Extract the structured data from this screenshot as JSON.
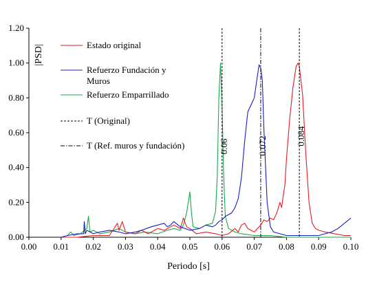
{
  "chart_data": {
    "type": "line",
    "xlabel": "Periodo  [s]",
    "ylabel": "|PSD|",
    "xlim": [
      0,
      0.1
    ],
    "ylim": [
      0,
      1.2
    ],
    "xticks": [
      "0.00",
      "0.01",
      "0.02",
      "0.03",
      "0.04",
      "0.05",
      "0.06",
      "0.07",
      "0.08",
      "0.09",
      "0.10"
    ],
    "yticks": [
      "0.00",
      "0.20",
      "0.40",
      "0.60",
      "0.80",
      "1.00",
      "1.20"
    ],
    "grid": false,
    "legend_position": "top-left-inside",
    "series": [
      {
        "name": "Estado original",
        "color": "#e8191f",
        "x": [
          0.01,
          0.015,
          0.02,
          0.025,
          0.0275,
          0.028,
          0.029,
          0.03,
          0.033,
          0.035,
          0.037,
          0.04,
          0.042,
          0.045,
          0.047,
          0.048,
          0.049,
          0.05,
          0.052,
          0.055,
          0.058,
          0.06,
          0.062,
          0.064,
          0.065,
          0.066,
          0.067,
          0.068,
          0.069,
          0.07,
          0.071,
          0.072,
          0.073,
          0.074,
          0.075,
          0.076,
          0.077,
          0.078,
          0.0785,
          0.079,
          0.0795,
          0.08,
          0.081,
          0.082,
          0.083,
          0.0836,
          0.084,
          0.085,
          0.086,
          0.087,
          0.088,
          0.089,
          0.09,
          0.092,
          0.095,
          0.098,
          0.1
        ],
        "values": [
          0.0,
          0.0,
          0.01,
          0.01,
          0.08,
          0.04,
          0.09,
          0.03,
          0.02,
          0.04,
          0.02,
          0.05,
          0.04,
          0.07,
          0.05,
          0.11,
          0.06,
          0.05,
          0.02,
          0.03,
          0.02,
          0.01,
          0.02,
          0.05,
          0.03,
          0.07,
          0.08,
          0.05,
          0.04,
          0.03,
          0.05,
          0.07,
          0.1,
          0.09,
          0.11,
          0.1,
          0.14,
          0.2,
          0.17,
          0.24,
          0.3,
          0.45,
          0.68,
          0.86,
          0.98,
          1.0,
          0.98,
          0.82,
          0.48,
          0.2,
          0.08,
          0.05,
          0.04,
          0.03,
          0.02,
          0.01,
          0.01
        ]
      },
      {
        "name": "Refuerzo Fundación y Muros",
        "color": "#1919c8",
        "x": [
          0.01,
          0.012,
          0.015,
          0.017,
          0.0172,
          0.0175,
          0.018,
          0.02,
          0.022,
          0.025,
          0.028,
          0.03,
          0.033,
          0.035,
          0.038,
          0.04,
          0.042,
          0.043,
          0.044,
          0.045,
          0.047,
          0.05,
          0.053,
          0.055,
          0.057,
          0.058,
          0.059,
          0.06,
          0.061,
          0.062,
          0.063,
          0.064,
          0.065,
          0.066,
          0.067,
          0.068,
          0.069,
          0.07,
          0.071,
          0.0715,
          0.072,
          0.0725,
          0.073,
          0.074,
          0.075,
          0.076,
          0.078,
          0.08,
          0.085,
          0.09,
          0.092,
          0.094,
          0.096,
          0.098,
          0.1
        ],
        "values": [
          0.0,
          0.01,
          0.02,
          0.02,
          0.09,
          0.02,
          0.04,
          0.02,
          0.03,
          0.04,
          0.03,
          0.02,
          0.03,
          0.04,
          0.06,
          0.07,
          0.08,
          0.06,
          0.07,
          0.09,
          0.06,
          0.04,
          0.05,
          0.07,
          0.06,
          0.07,
          0.09,
          0.1,
          0.12,
          0.13,
          0.14,
          0.17,
          0.22,
          0.34,
          0.55,
          0.72,
          0.76,
          0.8,
          0.93,
          0.99,
          0.97,
          0.9,
          0.62,
          0.2,
          0.06,
          0.03,
          0.02,
          0.01,
          0.01,
          0.01,
          0.02,
          0.03,
          0.05,
          0.08,
          0.11
        ]
      },
      {
        "name": "Refuerzo Emparrillado",
        "color": "#16a84a",
        "x": [
          0.01,
          0.012,
          0.013,
          0.014,
          0.016,
          0.018,
          0.0185,
          0.019,
          0.02,
          0.022,
          0.025,
          0.028,
          0.03,
          0.033,
          0.036,
          0.04,
          0.043,
          0.045,
          0.047,
          0.048,
          0.049,
          0.05,
          0.0505,
          0.051,
          0.053,
          0.055,
          0.057,
          0.058,
          0.0585,
          0.059,
          0.0595,
          0.06,
          0.0605,
          0.061,
          0.062,
          0.064,
          0.066,
          0.07,
          0.075,
          0.08,
          0.09,
          0.1
        ],
        "values": [
          0.0,
          0.01,
          0.03,
          0.01,
          0.02,
          0.05,
          0.12,
          0.03,
          0.04,
          0.02,
          0.03,
          0.05,
          0.03,
          0.02,
          0.03,
          0.02,
          0.04,
          0.05,
          0.04,
          0.07,
          0.14,
          0.26,
          0.14,
          0.06,
          0.05,
          0.07,
          0.08,
          0.15,
          0.35,
          0.8,
          1.0,
          0.75,
          0.35,
          0.12,
          0.05,
          0.03,
          0.02,
          0.01,
          0.01,
          0.0,
          0.0,
          0.0
        ]
      }
    ],
    "reference_lines": [
      {
        "name": "T (Original)",
        "x": 0.084,
        "style": "dashed",
        "label": "0.084"
      },
      {
        "name": "T (Ref. muros y fundación)",
        "x": 0.072,
        "style": "dashdot",
        "label": "0.072"
      },
      {
        "x": 0.06,
        "style": "dashed",
        "label": "0.06"
      }
    ],
    "legend": [
      {
        "label": "Estado original",
        "color": "#e8191f",
        "style": "solid"
      },
      {
        "label": "Refuerzo Fundación y Muros",
        "color": "#1919c8",
        "style": "solid"
      },
      {
        "label": "Refuerzo Emparrillado",
        "color": "#16a84a",
        "style": "solid"
      },
      {
        "label": "T (Original)",
        "color": "#000000",
        "style": "dashed"
      },
      {
        "label": "T (Ref. muros y fundación)",
        "color": "#000000",
        "style": "dashdot"
      }
    ]
  }
}
